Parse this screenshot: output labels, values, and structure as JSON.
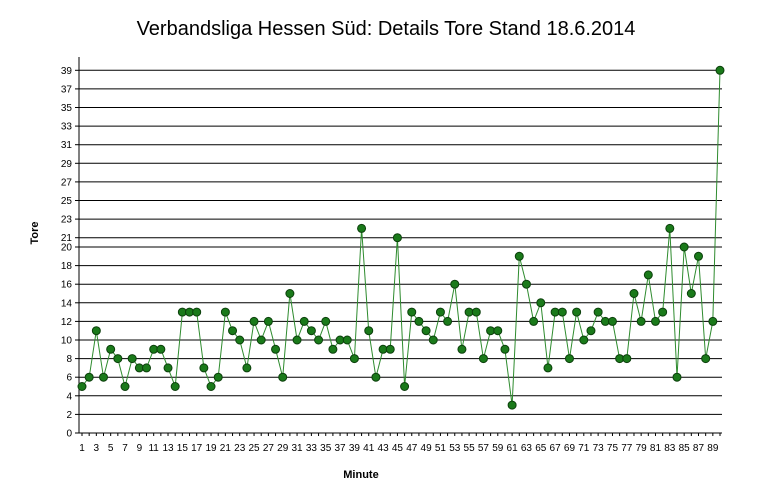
{
  "chart_data": {
    "type": "line",
    "title": "Verbandsliga Hessen Süd: Details Tore Stand 18.6.2014",
    "xlabel": "Minute",
    "ylabel": "Tore",
    "ylim": [
      0,
      40
    ],
    "y_ticks": [
      0,
      2,
      4,
      6,
      8,
      10,
      12,
      14,
      16,
      18,
      20,
      21,
      23,
      25,
      27,
      29,
      31,
      33,
      35,
      37,
      39
    ],
    "x_ticks": [
      1,
      3,
      5,
      7,
      9,
      11,
      13,
      15,
      17,
      19,
      21,
      23,
      25,
      27,
      29,
      31,
      33,
      35,
      37,
      39,
      41,
      43,
      45,
      47,
      49,
      51,
      53,
      55,
      57,
      59,
      61,
      63,
      65,
      67,
      69,
      71,
      73,
      75,
      77,
      79,
      81,
      83,
      85,
      87,
      89
    ],
    "grid": true,
    "legend": "none",
    "colors": {
      "line": "#2e8b2e",
      "marker": "#1a7a1a",
      "marker_edge": "#0b3f0b",
      "grid": "#000000"
    },
    "x": [
      1,
      2,
      3,
      4,
      5,
      6,
      7,
      8,
      9,
      10,
      11,
      12,
      13,
      14,
      15,
      16,
      17,
      18,
      19,
      20,
      21,
      22,
      23,
      24,
      25,
      26,
      27,
      28,
      29,
      30,
      31,
      32,
      33,
      34,
      35,
      36,
      37,
      38,
      39,
      40,
      41,
      42,
      43,
      44,
      45,
      46,
      47,
      48,
      49,
      50,
      51,
      52,
      53,
      54,
      55,
      56,
      57,
      58,
      59,
      60,
      61,
      62,
      63,
      64,
      65,
      66,
      67,
      68,
      69,
      70,
      71,
      72,
      73,
      74,
      75,
      76,
      77,
      78,
      79,
      80,
      81,
      82,
      83,
      84,
      85,
      86,
      87,
      88,
      89,
      90
    ],
    "values": [
      5,
      6,
      11,
      6,
      9,
      8,
      5,
      8,
      7,
      7,
      9,
      9,
      7,
      5,
      13,
      13,
      13,
      7,
      5,
      6,
      13,
      11,
      10,
      7,
      12,
      10,
      12,
      9,
      6,
      15,
      10,
      12,
      11,
      10,
      12,
      9,
      10,
      10,
      8,
      22,
      11,
      6,
      9,
      9,
      21,
      5,
      13,
      12,
      11,
      10,
      13,
      12,
      16,
      9,
      13,
      13,
      8,
      11,
      11,
      9,
      3,
      19,
      16,
      12,
      14,
      7,
      13,
      13,
      8,
      13,
      10,
      11,
      13,
      12,
      12,
      8,
      8,
      15,
      12,
      17,
      12,
      13,
      22,
      6,
      20,
      15,
      19,
      8,
      12,
      39
    ]
  }
}
